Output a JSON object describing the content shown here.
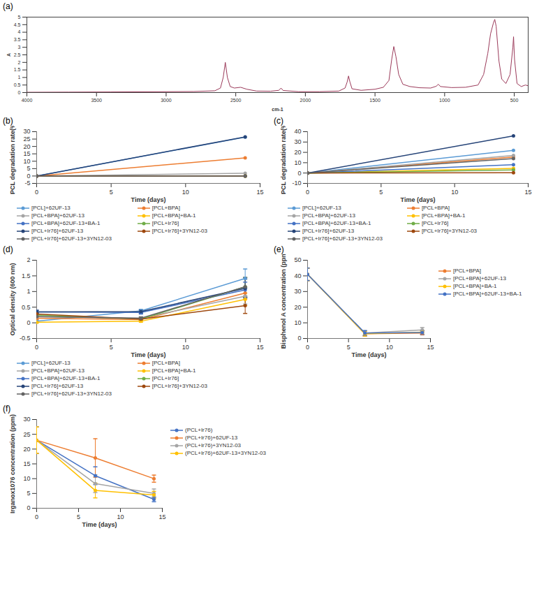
{
  "chart_data": [
    {
      "type": "line",
      "title": "(a)",
      "x_label": "cm-1",
      "y_label": "A",
      "x": [
        4000,
        3700,
        3400,
        3100,
        2800,
        2650,
        2610,
        2590,
        2575,
        2560,
        2540,
        2510,
        2465,
        2420,
        2350,
        2250,
        2190,
        2175,
        2160,
        2050,
        1900,
        1760,
        1715,
        1700,
        1690,
        1680,
        1665,
        1600,
        1500,
        1440,
        1400,
        1380,
        1365,
        1350,
        1330,
        1300,
        1250,
        1180,
        1100,
        1060,
        1045,
        1030,
        950,
        850,
        760,
        720,
        690,
        670,
        650,
        640,
        630,
        610,
        590,
        560,
        530,
        510,
        505,
        498,
        480,
        450,
        420,
        400
      ],
      "series": [
        {
          "color": "#9b3a5a",
          "marker": "none",
          "line_style": "solid",
          "values": [
            0.02,
            0.03,
            0.04,
            0.05,
            0.07,
            0.12,
            0.3,
            1.0,
            2.0,
            1.0,
            0.4,
            0.3,
            0.35,
            0.22,
            0.1,
            0.09,
            0.15,
            0.3,
            0.14,
            0.06,
            0.06,
            0.1,
            0.3,
            0.7,
            1.1,
            0.7,
            0.25,
            0.15,
            0.22,
            0.35,
            0.8,
            2.2,
            3.05,
            2.4,
            1.2,
            0.55,
            0.4,
            0.32,
            0.3,
            0.42,
            0.55,
            0.4,
            0.33,
            0.35,
            0.5,
            1.2,
            2.6,
            3.9,
            4.6,
            4.85,
            4.4,
            2.1,
            0.9,
            0.6,
            1.2,
            3.0,
            3.7,
            2.2,
            0.6,
            0.4,
            0.5,
            0.45
          ]
        }
      ],
      "xlim": [
        4000,
        400
      ],
      "xticks": [
        4000,
        3500,
        3000,
        2500,
        2000,
        1500,
        1000,
        500
      ],
      "ylim": [
        0,
        5
      ],
      "yticks": [
        0,
        0.5,
        1,
        1.5,
        2,
        2.5,
        3,
        3.5,
        4,
        4.5,
        5
      ],
      "grid": false
    },
    {
      "type": "line",
      "title": "(b)",
      "x_label": "Time (days)",
      "y_label": "PCL degradation rate(%)",
      "x": [
        0,
        14
      ],
      "xlim": [
        0,
        15
      ],
      "xticks": [
        0,
        5,
        10,
        15
      ],
      "ylim": [
        -5,
        30
      ],
      "yticks": [
        -5,
        0,
        5,
        10,
        15,
        20,
        25,
        30
      ],
      "grid": false,
      "legend": "bottom",
      "marker": "circle",
      "series": [
        {
          "name": "[PCL]+62UF-13",
          "color": "#5b9bd5",
          "values": [
            0,
            26.3
          ]
        },
        {
          "name": "[PCL+BPA]",
          "color": "#ed7d31",
          "values": [
            0,
            12.3
          ]
        },
        {
          "name": "[PCL+BPA]+62UF-13",
          "color": "#a5a5a5",
          "values": [
            0,
            1.8
          ]
        },
        {
          "name": "[PCL+BPA]+BA-1",
          "color": "#ffc000",
          "values": [
            0,
            0
          ]
        },
        {
          "name": "[PCL+BPA]+62UF-13+BA-1",
          "color": "#4472c4",
          "values": [
            0,
            0
          ]
        },
        {
          "name": "[PCL+Ir76]",
          "color": "#70ad47",
          "values": [
            0,
            0
          ]
        },
        {
          "name": "[PCL+Ir76]+62UF-13",
          "color": "#264478",
          "values": [
            0,
            26.5
          ]
        },
        {
          "name": "[PCL+Ir76]+3YN12-03",
          "color": "#9e480e",
          "values": [
            0,
            0
          ]
        },
        {
          "name": "[PCL+Ir76]+62UF-13+3YN12-03",
          "color": "#636363",
          "values": [
            0,
            0
          ]
        }
      ]
    },
    {
      "type": "line",
      "title": "(c)",
      "x_label": "Time (days)",
      "y_label": "PCL degradation rate(%)",
      "x": [
        0,
        14
      ],
      "xlim": [
        0,
        15
      ],
      "xticks": [
        0,
        5,
        10,
        15
      ],
      "ylim": [
        -10,
        40
      ],
      "yticks": [
        -10,
        0,
        10,
        20,
        30,
        40
      ],
      "grid": false,
      "legend": "bottom",
      "marker": "circle",
      "series": [
        {
          "name": "[PCL]+62UF-13",
          "color": "#5b9bd5",
          "values": [
            0,
            22
          ]
        },
        {
          "name": "[PCL+BPA]",
          "color": "#ed7d31",
          "values": [
            0,
            15.5
          ]
        },
        {
          "name": "[PCL+BPA]+62UF-13",
          "color": "#a5a5a5",
          "values": [
            0,
            17
          ]
        },
        {
          "name": "[PCL+BPA]+BA-1",
          "color": "#ffc000",
          "values": [
            0,
            4.5
          ]
        },
        {
          "name": "[PCL+BPA]+62UF-13+BA-1",
          "color": "#4472c4",
          "values": [
            0,
            8
          ]
        },
        {
          "name": "[PCL+Ir76]",
          "color": "#70ad47",
          "values": [
            0,
            3
          ]
        },
        {
          "name": "[PCL+Ir76]+62UF-13",
          "color": "#264478",
          "values": [
            0,
            36
          ]
        },
        {
          "name": "[PCL+Ir76]+3YN12-03",
          "color": "#9e480e",
          "values": [
            0,
            0.3
          ]
        },
        {
          "name": "[PCL+Ir76]+62UF-13+3YN12-03",
          "color": "#636363",
          "values": [
            0,
            14
          ]
        }
      ]
    },
    {
      "type": "line",
      "title": "(d)",
      "x_label": "Time (days)",
      "y_label": "Optical density (600 nm)",
      "x": [
        0,
        7,
        14
      ],
      "xlim": [
        0,
        15
      ],
      "xticks": [
        0,
        5,
        10,
        15
      ],
      "ylim": [
        -0.5,
        2
      ],
      "yticks": [
        -0.5,
        0,
        0.5,
        1,
        1.5,
        2
      ],
      "grid": false,
      "legend": "bottom",
      "marker": "circle",
      "series": [
        {
          "name": "[PCL]+62UF-13",
          "color": "#5b9bd5",
          "values": [
            0.05,
            0.38,
            1.42
          ],
          "errors": [
            0.04,
            0.05,
            0.3
          ]
        },
        {
          "name": "[PCL+BPA]",
          "color": "#ed7d31",
          "values": [
            0.15,
            0.1,
            0.95
          ],
          "errors": [
            0.04,
            0.04,
            0.2
          ]
        },
        {
          "name": "[PCL+BPA]+62UF-13",
          "color": "#a5a5a5",
          "values": [
            0.2,
            0.15,
            0.85
          ],
          "errors": [
            0.05,
            0.04,
            0.25
          ]
        },
        {
          "name": "[PCL+BPA]+BA-1",
          "color": "#ffc000",
          "values": [
            0.02,
            0.05,
            0.75
          ],
          "errors": [
            0.03,
            0.03,
            0.2
          ]
        },
        {
          "name": "[PCL+BPA]+62UF-13+BA-1",
          "color": "#4472c4",
          "values": [
            0.35,
            0.33,
            1.05
          ],
          "errors": [
            0.05,
            0.05,
            0.25
          ]
        },
        {
          "name": "[PCL+Ir76]",
          "color": "#70ad47",
          "values": [
            0.25,
            0.12,
            1.15
          ],
          "errors": [
            0.05,
            0.04,
            0.3
          ]
        },
        {
          "name": "[PCL+Ir76]+62UF-13",
          "color": "#264478",
          "values": [
            0.35,
            0.36,
            1.1
          ],
          "errors": [
            0.05,
            0.05,
            0.3
          ]
        },
        {
          "name": "[PCL+Ir76]+3YN12-03",
          "color": "#9e480e",
          "values": [
            0.28,
            0.12,
            0.55
          ],
          "errors": [
            0.05,
            0.04,
            0.25
          ]
        },
        {
          "name": "[PCL+Ir76]+62UF-13+3YN12-03",
          "color": "#636363",
          "values": [
            0.2,
            0.15,
            1.15
          ],
          "errors": [
            0.05,
            0.04,
            0.3
          ]
        }
      ]
    },
    {
      "type": "line",
      "title": "(e)",
      "x_label": "Time (days)",
      "y_label": "Bisphenol A concentration (ppm)",
      "x": [
        0,
        7,
        14
      ],
      "xlim": [
        0,
        15
      ],
      "xticks": [
        0,
        5,
        10,
        15
      ],
      "ylim": [
        0,
        50
      ],
      "yticks": [
        0,
        10,
        20,
        30,
        40,
        50
      ],
      "grid": false,
      "legend": "right",
      "marker": "circle",
      "series": [
        {
          "name": "[PCL+BPA]",
          "color": "#ed7d31",
          "values": [
            41,
            3,
            3.5
          ],
          "errors": [
            4,
            1.5,
            1.2
          ]
        },
        {
          "name": "[PCL+BPA]+62UF-13",
          "color": "#a5a5a5",
          "values": [
            41,
            3.5,
            5.5
          ],
          "errors": [
            4,
            1.5,
            1.5
          ]
        },
        {
          "name": "[PCL+BPA]+BA-1",
          "color": "#ffc000",
          "values": [
            41,
            3,
            4
          ],
          "errors": [
            4,
            1.5,
            1.2
          ]
        },
        {
          "name": "[PCL+BPA]+62UF-13+BA-1",
          "color": "#4472c4",
          "values": [
            41,
            3.5,
            3.8
          ],
          "errors": [
            4,
            1.5,
            1.2
          ]
        }
      ]
    },
    {
      "type": "line",
      "title": "(f)",
      "x_label": "Time (days)",
      "y_label": "Irganox1076 concentration (ppm)",
      "x": [
        0,
        7,
        14
      ],
      "xlim": [
        0,
        15
      ],
      "xticks": [
        0,
        5,
        10,
        15
      ],
      "ylim": [
        0,
        30
      ],
      "yticks": [
        0,
        5,
        10,
        15,
        20,
        25,
        30
      ],
      "grid": false,
      "legend": "right",
      "marker": "circle",
      "series": [
        {
          "name": "(PCL+Ir76)",
          "color": "#4472c4",
          "values": [
            23,
            11,
            3
          ],
          "errors": [
            4.5,
            3,
            0.8
          ]
        },
        {
          "name": "(PCL+Ir76)+62UF-13",
          "color": "#ed7d31",
          "values": [
            23,
            17,
            10
          ],
          "errors": [
            4.5,
            6.5,
            1.2
          ]
        },
        {
          "name": "(PCL+Ir76)+3YN12-03",
          "color": "#a5a5a5",
          "values": [
            23,
            8.3,
            5
          ],
          "errors": [
            4.5,
            3,
            1.5
          ]
        },
        {
          "name": "(PCL+Ir76)+62UF-13+3YN12-03",
          "color": "#ffc000",
          "values": [
            23,
            6,
            4.5
          ],
          "errors": [
            4.5,
            2.5,
            1.2
          ]
        }
      ]
    }
  ]
}
